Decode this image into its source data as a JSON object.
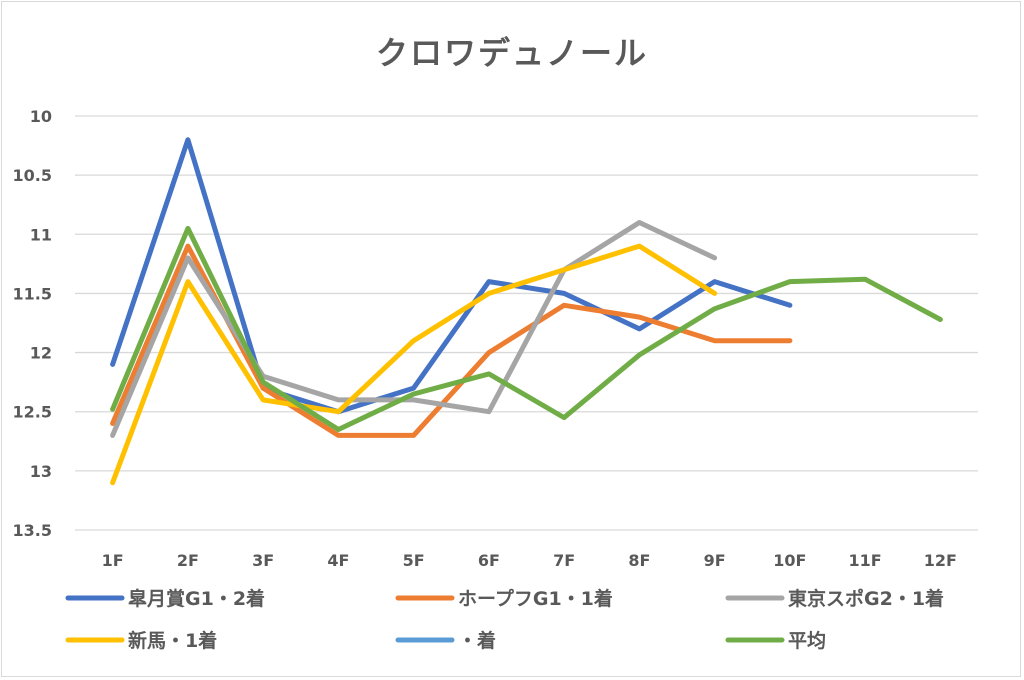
{
  "chart_data": {
    "type": "line",
    "title": "クロワデュノール",
    "xlabel": "",
    "ylabel": "",
    "categories": [
      "1F",
      "2F",
      "3F",
      "4F",
      "5F",
      "6F",
      "7F",
      "8F",
      "9F",
      "10F",
      "11F",
      "12F"
    ],
    "ylim": [
      10,
      13.5
    ],
    "y_reversed": true,
    "yticks": [
      "10",
      "10.5",
      "11",
      "11.5",
      "12",
      "12.5",
      "13",
      "13.5"
    ],
    "ytick_values": [
      10,
      10.5,
      11,
      11.5,
      12,
      12.5,
      13,
      13.5
    ],
    "grid": true,
    "legend_position": "bottom",
    "series": [
      {
        "name": "皐月賞G1・2着",
        "color": "#4472c4",
        "values": [
          12.1,
          10.2,
          12.3,
          12.5,
          12.3,
          11.4,
          11.5,
          11.8,
          11.4,
          11.6,
          null,
          null
        ]
      },
      {
        "name": "ホープフG1・1着",
        "color": "#ed7d31",
        "values": [
          12.6,
          11.1,
          12.3,
          12.7,
          12.7,
          12.0,
          11.6,
          11.7,
          11.9,
          11.9,
          null,
          null
        ]
      },
      {
        "name": "東京スポG2・1着",
        "color": "#a5a5a5",
        "values": [
          12.7,
          11.2,
          12.2,
          12.4,
          12.4,
          12.5,
          11.3,
          10.9,
          11.2,
          null,
          null,
          null
        ]
      },
      {
        "name": "新馬・1着",
        "color": "#ffc000",
        "values": [
          13.1,
          11.4,
          12.4,
          12.5,
          11.9,
          11.5,
          11.3,
          11.1,
          11.5,
          null,
          null,
          null
        ]
      },
      {
        "name": "・着",
        "color": "#5b9bd5",
        "values": [
          null,
          null,
          null,
          null,
          null,
          null,
          null,
          null,
          null,
          null,
          null,
          null
        ]
      },
      {
        "name": "平均",
        "color": "#70ad47",
        "values": [
          12.48,
          10.95,
          12.25,
          12.65,
          12.35,
          12.18,
          12.55,
          12.02,
          11.63,
          11.4,
          11.38,
          11.72
        ]
      }
    ]
  }
}
